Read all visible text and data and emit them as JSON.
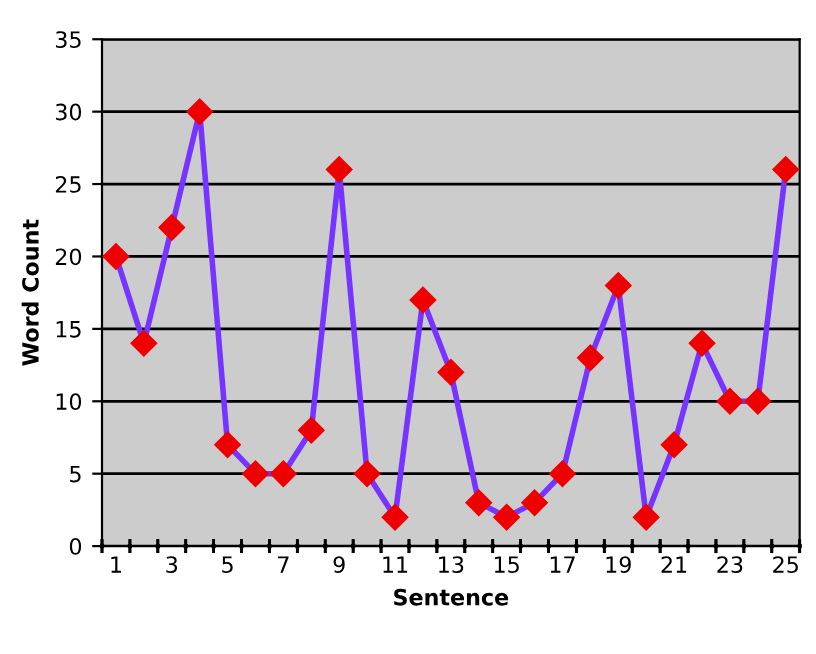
{
  "chart_data": {
    "type": "line",
    "xlabel": "Sentence",
    "ylabel": "Word Count",
    "categories": [
      "1",
      null,
      "3",
      null,
      "5",
      null,
      "7",
      null,
      "9",
      null,
      "11",
      null,
      "13",
      null,
      "15",
      null,
      "17",
      null,
      "19",
      null,
      "21",
      null,
      "23",
      null,
      "25"
    ],
    "series": [
      {
        "color": "#7733ff",
        "values": [
          20,
          14,
          22,
          30,
          7,
          5,
          5,
          8,
          26,
          5,
          2,
          17,
          12,
          3,
          2,
          3,
          5,
          13,
          18,
          2,
          7,
          14,
          10,
          10,
          26
        ]
      }
    ],
    "marker": "diamond",
    "ylim": [
      0,
      35
    ],
    "yticks": [
      0,
      5,
      10,
      15,
      20,
      25,
      30,
      35
    ],
    "grid": "y",
    "legend": false
  }
}
